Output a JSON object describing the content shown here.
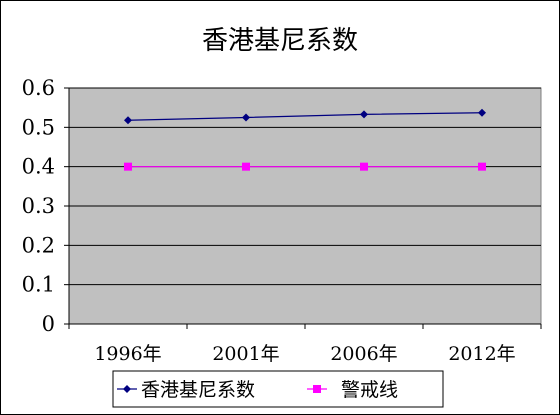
{
  "chart_data": {
    "type": "line",
    "title": "香港基尼系数",
    "categories": [
      "1996年",
      "2001年",
      "2006年",
      "2012年"
    ],
    "y_ticks": [
      "0",
      "0.1",
      "0.2",
      "0.3",
      "0.4",
      "0.5",
      "0.6"
    ],
    "ylim": [
      0,
      0.6
    ],
    "grid": true,
    "legend_position": "bottom",
    "plot_background": "#c0c0c0",
    "series": [
      {
        "name": "香港基尼系数",
        "values": [
          0.518,
          0.525,
          0.533,
          0.537
        ],
        "color": "#000080",
        "marker": "diamond"
      },
      {
        "name": "警戒线",
        "values": [
          0.4,
          0.4,
          0.4,
          0.4
        ],
        "color": "#ff00ff",
        "marker": "square"
      }
    ]
  }
}
